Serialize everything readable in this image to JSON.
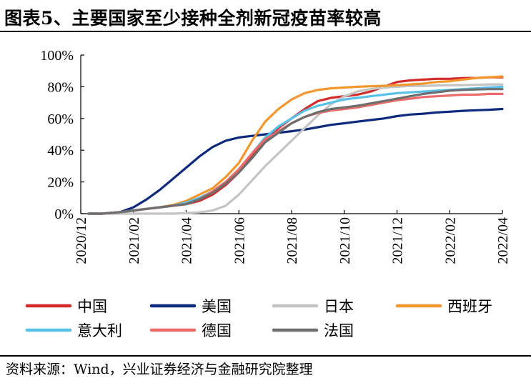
{
  "title": "图表5、主要国家至少接种全剂新冠疫苗率较高",
  "source": "资料来源：Wind，兴业证券经济与金融研究院整理",
  "chart_data": {
    "type": "line",
    "title": "图表5、主要国家至少接种全剂新冠疫苗率较高",
    "xlabel": "",
    "ylabel": "",
    "ylim": [
      0,
      100
    ],
    "y_ticks": [
      "0%",
      "20%",
      "40%",
      "60%",
      "80%",
      "100%"
    ],
    "x_ticks": [
      "2020/12",
      "2021/02",
      "2021/04",
      "2021/06",
      "2021/08",
      "2021/10",
      "2021/12",
      "2022/02",
      "2022/04"
    ],
    "x_unit": "months since 2020/12",
    "grid": false,
    "legend_position": "bottom",
    "series": [
      {
        "name": "中国",
        "color": "#d42a2a",
        "x": [
          0.3,
          0.8,
          1.5,
          2.0,
          2.5,
          3.0,
          3.5,
          4.0,
          4.5,
          5.0,
          5.5,
          6.0,
          6.5,
          7.0,
          7.5,
          8.0,
          8.5,
          9.0,
          9.5,
          10.0,
          10.5,
          11.0,
          11.5,
          12.0,
          12.5,
          13.0,
          13.5,
          14.0,
          14.5,
          15.0,
          15.5,
          16.0
        ],
        "values": [
          0,
          0,
          1,
          2,
          3,
          4,
          5,
          6,
          8,
          12,
          18,
          26,
          36,
          46,
          54,
          60,
          66,
          71,
          73,
          74,
          75,
          77,
          80,
          83,
          84,
          84.5,
          85,
          85,
          85.5,
          85.5,
          86,
          86
        ]
      },
      {
        "name": "美国",
        "color": "#0d2a7e",
        "x": [
          0.3,
          0.8,
          1.5,
          2.0,
          2.5,
          3.0,
          3.5,
          4.0,
          4.5,
          5.0,
          5.5,
          6.0,
          6.5,
          7.0,
          7.5,
          8.0,
          8.5,
          9.0,
          9.5,
          10.0,
          10.5,
          11.0,
          11.5,
          12.0,
          12.5,
          13.0,
          13.5,
          14.0,
          14.5,
          15.0,
          15.5,
          16.0
        ],
        "values": [
          0,
          0,
          1,
          4,
          9,
          15,
          22,
          29,
          36,
          42,
          46,
          48,
          49,
          50,
          51,
          52,
          53,
          54.5,
          56,
          57,
          58,
          59,
          60,
          61.5,
          62.5,
          63,
          63.8,
          64.3,
          64.8,
          65.2,
          65.5,
          66
        ]
      },
      {
        "name": "日本",
        "color": "#c4c4c4",
        "x": [
          0.3,
          1.0,
          2.0,
          3.0,
          3.5,
          4.0,
          4.5,
          5.0,
          5.5,
          6.0,
          6.5,
          7.0,
          7.5,
          8.0,
          8.5,
          9.0,
          9.5,
          10.0,
          10.5,
          11.0,
          11.5,
          12.0,
          12.5,
          13.0,
          13.5,
          14.0,
          14.5,
          15.0,
          15.5,
          16.0
        ],
        "values": [
          0,
          0,
          0,
          0,
          0,
          0.3,
          0.8,
          2,
          5,
          12,
          21,
          30,
          38,
          46,
          54,
          62,
          69,
          74,
          77,
          78.5,
          79.5,
          80,
          80.5,
          80.5,
          80.8,
          81,
          81,
          81.2,
          81.5,
          81.5
        ]
      },
      {
        "name": "西班牙",
        "color": "#f2962e",
        "x": [
          0.3,
          0.8,
          1.5,
          2.0,
          2.5,
          3.0,
          3.5,
          4.0,
          4.5,
          5.0,
          5.5,
          6.0,
          6.5,
          7.0,
          7.5,
          8.0,
          8.5,
          9.0,
          9.5,
          10.0,
          10.5,
          11.0,
          11.5,
          12.0,
          12.5,
          13.0,
          13.5,
          14.0,
          14.5,
          15.0,
          15.5,
          16.0
        ],
        "values": [
          0,
          0,
          1,
          2,
          3,
          4,
          5.5,
          8,
          12,
          16,
          23,
          32,
          46,
          58,
          66,
          72,
          76,
          78,
          79,
          79.5,
          80,
          80.3,
          80.6,
          81,
          81.5,
          82,
          83,
          83.5,
          84.5,
          85.5,
          86,
          86.5
        ]
      },
      {
        "name": "意大利",
        "color": "#59c1e8",
        "x": [
          0.3,
          0.8,
          1.5,
          2.0,
          2.5,
          3.0,
          3.5,
          4.0,
          4.5,
          5.0,
          5.5,
          6.0,
          6.5,
          7.0,
          7.5,
          8.0,
          8.5,
          9.0,
          9.5,
          10.0,
          10.5,
          11.0,
          11.5,
          12.0,
          12.5,
          13.0,
          13.5,
          14.0,
          14.5,
          15.0,
          15.5,
          16.0
        ],
        "values": [
          0,
          0,
          1,
          2,
          3,
          4,
          5,
          7,
          10,
          14,
          20,
          28,
          38,
          48,
          55,
          60,
          65,
          68,
          70,
          72,
          73,
          74,
          75,
          76,
          76.5,
          77,
          77.5,
          78,
          78.5,
          79,
          79.5,
          80
        ]
      },
      {
        "name": "德国",
        "color": "#ec6b69",
        "x": [
          0.3,
          0.8,
          1.5,
          2.0,
          2.5,
          3.0,
          3.5,
          4.0,
          4.5,
          5.0,
          5.5,
          6.0,
          6.5,
          7.0,
          7.5,
          8.0,
          8.5,
          9.0,
          9.5,
          10.0,
          10.5,
          11.0,
          11.5,
          12.0,
          12.5,
          13.0,
          13.5,
          14.0,
          14.5,
          15.0,
          15.5,
          16.0
        ],
        "values": [
          0,
          0,
          1,
          2,
          3,
          4,
          5,
          6,
          9,
          14,
          20,
          28,
          38,
          47,
          52,
          57,
          61,
          63.5,
          65,
          66,
          67,
          68.5,
          70,
          71.5,
          72.5,
          73.5,
          74,
          74.5,
          75,
          75,
          75.5,
          75.5
        ]
      },
      {
        "name": "法国",
        "color": "#6e6e6e",
        "x": [
          0.3,
          0.8,
          1.5,
          2.0,
          2.5,
          3.0,
          3.5,
          4.0,
          4.5,
          5.0,
          5.5,
          6.0,
          6.5,
          7.0,
          7.5,
          8.0,
          8.5,
          9.0,
          9.5,
          10.0,
          10.5,
          11.0,
          11.5,
          12.0,
          12.5,
          13.0,
          13.5,
          14.0,
          14.5,
          15.0,
          15.5,
          16.0
        ],
        "values": [
          0,
          0,
          1,
          2,
          3,
          4,
          5,
          6,
          9,
          13,
          19,
          26,
          35,
          45,
          51,
          57,
          61,
          64,
          66,
          67,
          68,
          69.5,
          71,
          72.5,
          74,
          75.5,
          76.5,
          77.5,
          78,
          78.3,
          78.5,
          78.5
        ]
      }
    ]
  }
}
